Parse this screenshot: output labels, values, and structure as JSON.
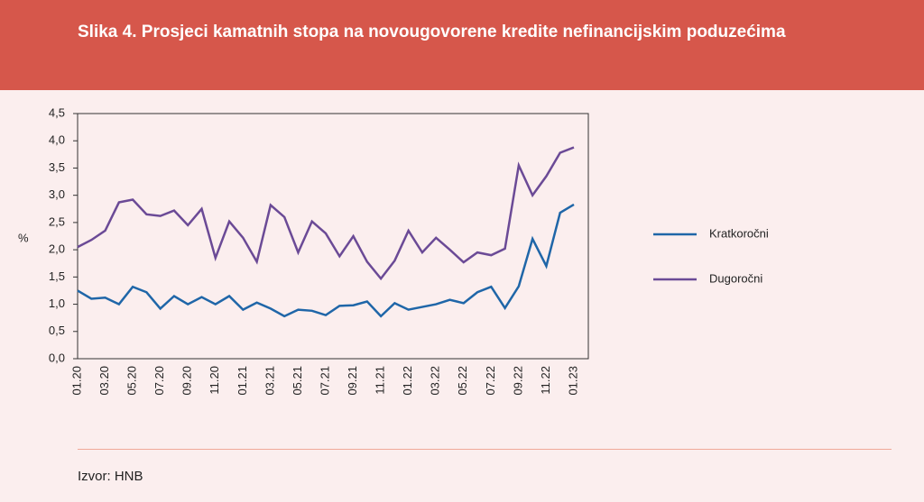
{
  "header": {
    "title": "Slika 4. Prosjeci kamatnih stopa na novougovorene kredite nefinancijskim poduzećima"
  },
  "chart_data": {
    "type": "line",
    "ylabel": "%",
    "categories": [
      "01.20",
      null,
      "03.20",
      null,
      "05.20",
      null,
      "07.20",
      null,
      "09.20",
      null,
      "11.20",
      null,
      "01.21",
      null,
      "03.21",
      null,
      "05.21",
      null,
      "07.21",
      null,
      "09.21",
      null,
      "11.21",
      null,
      "01.22",
      null,
      "03.22",
      null,
      "05.22",
      null,
      "07.22",
      null,
      "09.22",
      null,
      "11.22",
      null,
      "01.23"
    ],
    "series": [
      {
        "name": "Kratkoročni",
        "color": "#1f66a8",
        "values": [
          1.25,
          1.1,
          1.12,
          1.0,
          1.32,
          1.22,
          0.92,
          1.15,
          1.0,
          1.13,
          1.0,
          1.15,
          0.9,
          1.03,
          0.92,
          0.78,
          0.9,
          0.88,
          0.8,
          0.97,
          0.98,
          1.05,
          0.78,
          1.02,
          0.9,
          0.95,
          1.0,
          1.08,
          1.02,
          1.22,
          1.32,
          0.93,
          1.33,
          2.2,
          1.7,
          2.68,
          2.83
        ]
      },
      {
        "name": "Dugoročni",
        "color": "#6b4a96",
        "values": [
          2.05,
          2.18,
          2.35,
          2.87,
          2.92,
          2.65,
          2.62,
          2.72,
          2.45,
          2.75,
          1.85,
          2.52,
          2.22,
          1.78,
          2.82,
          2.6,
          1.95,
          2.52,
          2.3,
          1.88,
          2.25,
          1.78,
          1.47,
          1.8,
          2.35,
          1.95,
          2.22,
          2.0,
          1.77,
          1.95,
          1.9,
          2.02,
          3.55,
          3.0,
          3.35,
          3.78,
          3.88
        ]
      }
    ],
    "ylim": [
      0,
      4.5
    ],
    "yticks": [
      {
        "value": 0,
        "label": "0,0"
      },
      {
        "value": 0.5,
        "label": "0,5"
      },
      {
        "value": 1,
        "label": "1,0"
      },
      {
        "value": 1.5,
        "label": "1,5"
      },
      {
        "value": 2,
        "label": "2,0"
      },
      {
        "value": 2.5,
        "label": "2,5"
      },
      {
        "value": 3,
        "label": "3,0"
      },
      {
        "value": 3.5,
        "label": "3,5"
      },
      {
        "value": 4,
        "label": "4,0"
      },
      {
        "value": 4.5,
        "label": "4,5"
      }
    ],
    "grid": false,
    "legend": "right"
  },
  "source": "Izvor: HNB"
}
